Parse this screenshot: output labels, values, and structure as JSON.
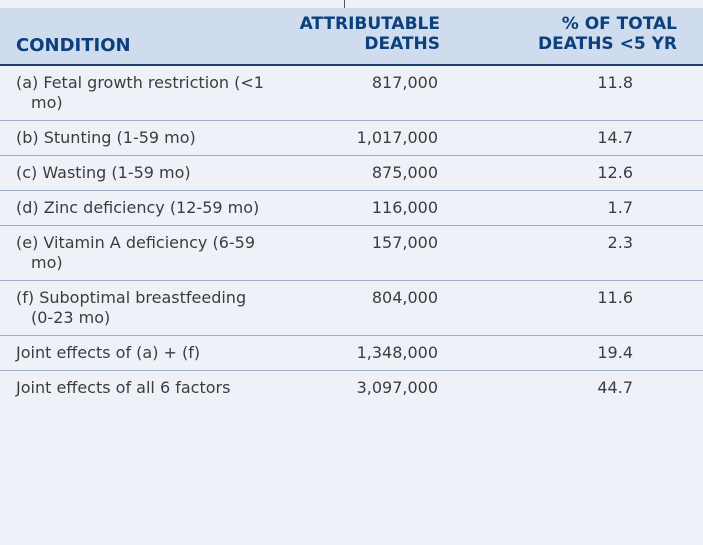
{
  "table": {
    "headers": {
      "condition": "CONDITION",
      "deaths_line1": "ATTRIBUTABLE",
      "deaths_line2": "DEATHS",
      "pct_line1": "% OF TOTAL",
      "pct_line2": "DEATHS <5 YR"
    },
    "rows": [
      {
        "condition": "(a) Fetal growth restriction (<1 mo)",
        "deaths": "817,000",
        "pct": "11.8"
      },
      {
        "condition": "(b) Stunting (1-59 mo)",
        "deaths": "1,017,000",
        "pct": "14.7"
      },
      {
        "condition": "(c) Wasting (1-59 mo)",
        "deaths": "875,000",
        "pct": "12.6"
      },
      {
        "condition": "(d) Zinc deficiency (12-59 mo)",
        "deaths": "116,000",
        "pct": "1.7"
      },
      {
        "condition": "(e) Vitamin A deficiency (6-59 mo)",
        "deaths": "157,000",
        "pct": "2.3"
      },
      {
        "condition": "(f) Suboptimal breastfeeding (0-23 mo)",
        "deaths": "804,000",
        "pct": "11.6"
      },
      {
        "condition": "Joint effects of (a) + (f)",
        "deaths": "1,348,000",
        "pct": "19.4"
      },
      {
        "condition": "Joint effects of all 6 factors",
        "deaths": "3,097,000",
        "pct": "44.7"
      }
    ]
  }
}
